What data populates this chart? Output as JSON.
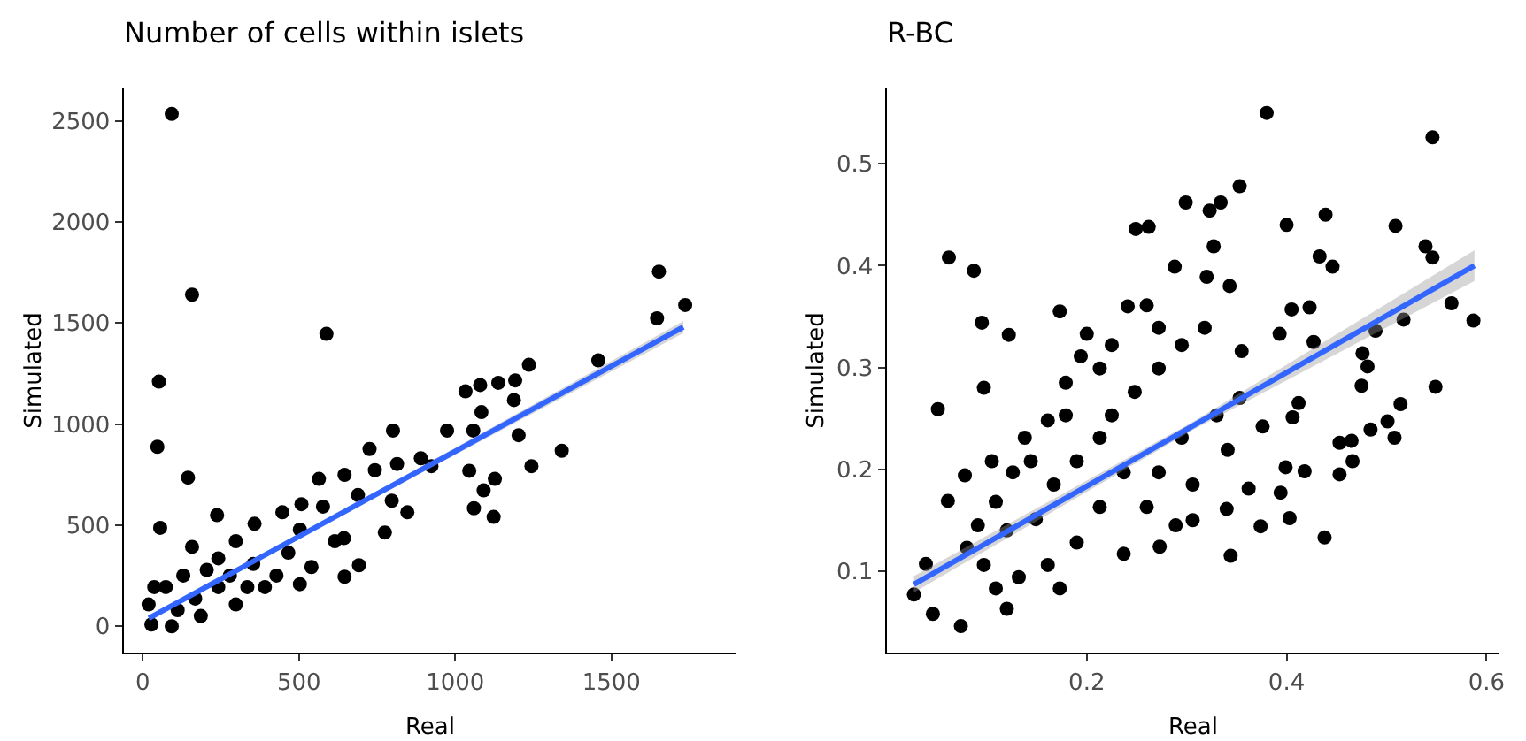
{
  "chart_data": [
    {
      "type": "scatter",
      "title": "Number of cells within islets",
      "xlabel": "Real",
      "ylabel": "Simulated",
      "xlim": [
        -60,
        1900
      ],
      "ylim": [
        -130,
        2660
      ],
      "xticks": [
        0,
        500,
        1000,
        1500
      ],
      "yticks": [
        0,
        500,
        1000,
        1500,
        2000,
        2500
      ],
      "grid": false,
      "marker": "circle",
      "series": [
        {
          "color": "#000000",
          "x": [
            93,
            158,
            588,
            52,
            47,
            145,
            56,
            1652,
            1736,
            1646,
            1458,
            1236,
            1192,
            1138,
            1080,
            1033,
            1084,
            1188,
            1058,
            974,
            801,
            1203,
            1341,
            1244,
            1045,
            1127,
            1091,
            1060,
            1123,
            890,
            924,
            814,
            726,
            743,
            797,
            847,
            775,
            646,
            564,
            508,
            689,
            644,
            692,
            646,
            540,
            447,
            358,
            238,
            158,
            428,
            503,
            19,
            28,
            93,
            37,
            205,
            298,
            354,
            242,
            391,
            112,
            168,
            298,
            74,
            130,
            242,
            335,
            466,
            503,
            577,
            615,
            279,
            186
          ],
          "values": [
            2534,
            1640,
            1446,
            1210,
            888,
            735,
            487,
            1754,
            1589,
            1523,
            1315,
            1293,
            1216,
            1204,
            1193,
            1162,
            1059,
            1119,
            968,
            968,
            968,
            945,
            868,
            792,
            769,
            729,
            672,
            584,
            541,
            831,
            792,
            803,
            877,
            772,
            621,
            564,
            464,
            749,
            729,
            604,
            649,
            436,
            302,
            245,
            293,
            564,
            507,
            550,
            393,
            251,
            208,
            108,
            9,
            0,
            194,
            279,
            421,
            308,
            194,
            194,
            80,
            137,
            108,
            194,
            251,
            336,
            194,
            364,
            478,
            592,
            421,
            251,
            51
          ]
        },
        {
          "type": "line",
          "color": "#3366ff",
          "line_style": "solid",
          "marker": "none",
          "x": [
            20,
            875,
            1730
          ],
          "values": [
            40,
            760,
            1480
          ],
          "lower": [
            30,
            745,
            1450
          ],
          "upper": [
            50,
            775,
            1510
          ]
        }
      ]
    },
    {
      "type": "scatter",
      "title": "R-BC",
      "xlabel": "Real",
      "ylabel": "Simulated",
      "xlim": [
        0,
        0.613
      ],
      "ylim": [
        0.02,
        0.574
      ],
      "xticks": [
        0.2,
        0.4,
        0.6
      ],
      "yticks": [
        0.1,
        0.2,
        0.3,
        0.4,
        0.5
      ],
      "grid": false,
      "marker": "circle",
      "series": [
        {
          "color": "#000000",
          "x": [
            0.38,
            0.546,
            0.353,
            0.299,
            0.334,
            0.323,
            0.249,
            0.262,
            0.439,
            0.4,
            0.509,
            0.539,
            0.546,
            0.433,
            0.446,
            0.062,
            0.087,
            0.327,
            0.288,
            0.32,
            0.343,
            0.095,
            0.122,
            0.173,
            0.241,
            0.26,
            0.051,
            0.097,
            0.061,
            0.078,
            0.105,
            0.027,
            0.039,
            0.046,
            0.074,
            0.12,
            0.173,
            0.565,
            0.587,
            0.517,
            0.489,
            0.476,
            0.481,
            0.475,
            0.549,
            0.514,
            0.484,
            0.501,
            0.508,
            0.453,
            0.465,
            0.466,
            0.453,
            0.418,
            0.399,
            0.403,
            0.438,
            0.374,
            0.344,
            0.394,
            0.405,
            0.423,
            0.427,
            0.393,
            0.355,
            0.412,
            0.406,
            0.362,
            0.34,
            0.306,
            0.289,
            0.273,
            0.2,
            0.194,
            0.179,
            0.161,
            0.138,
            0.126,
            0.109,
            0.091,
            0.08,
            0.12,
            0.149,
            0.167,
            0.19,
            0.213,
            0.225,
            0.248,
            0.272,
            0.295,
            0.318,
            0.237,
            0.26,
            0.213,
            0.19,
            0.161,
            0.132,
            0.109,
            0.237,
            0.272,
            0.295,
            0.33,
            0.353,
            0.376,
            0.341,
            0.306,
            0.213,
            0.225,
            0.272,
            0.179,
            0.144,
            0.097
          ],
          "values": [
            0.55,
            0.526,
            0.478,
            0.462,
            0.462,
            0.454,
            0.436,
            0.438,
            0.45,
            0.44,
            0.439,
            0.419,
            0.408,
            0.409,
            0.399,
            0.408,
            0.395,
            0.419,
            0.399,
            0.389,
            0.38,
            0.344,
            0.332,
            0.355,
            0.36,
            0.361,
            0.259,
            0.28,
            0.169,
            0.194,
            0.208,
            0.077,
            0.107,
            0.058,
            0.046,
            0.063,
            0.083,
            0.363,
            0.346,
            0.347,
            0.336,
            0.314,
            0.301,
            0.282,
            0.281,
            0.264,
            0.239,
            0.247,
            0.231,
            0.226,
            0.228,
            0.208,
            0.195,
            0.198,
            0.202,
            0.152,
            0.133,
            0.144,
            0.115,
            0.177,
            0.357,
            0.359,
            0.325,
            0.333,
            0.316,
            0.265,
            0.251,
            0.181,
            0.161,
            0.15,
            0.145,
            0.124,
            0.333,
            0.311,
            0.285,
            0.248,
            0.231,
            0.197,
            0.168,
            0.145,
            0.123,
            0.14,
            0.151,
            0.185,
            0.208,
            0.231,
            0.253,
            0.276,
            0.299,
            0.322,
            0.339,
            0.197,
            0.163,
            0.163,
            0.128,
            0.106,
            0.094,
            0.083,
            0.117,
            0.197,
            0.231,
            0.253,
            0.27,
            0.242,
            0.219,
            0.185,
            0.299,
            0.322,
            0.339,
            0.253,
            0.208,
            0.106
          ]
        },
        {
          "type": "line",
          "color": "#3366ff",
          "line_style": "solid",
          "marker": "none",
          "x": [
            0.027,
            0.307,
            0.588
          ],
          "values": [
            0.087,
            0.243,
            0.4
          ],
          "lower": [
            0.079,
            0.239,
            0.385
          ],
          "upper": [
            0.095,
            0.247,
            0.415
          ]
        }
      ]
    }
  ]
}
